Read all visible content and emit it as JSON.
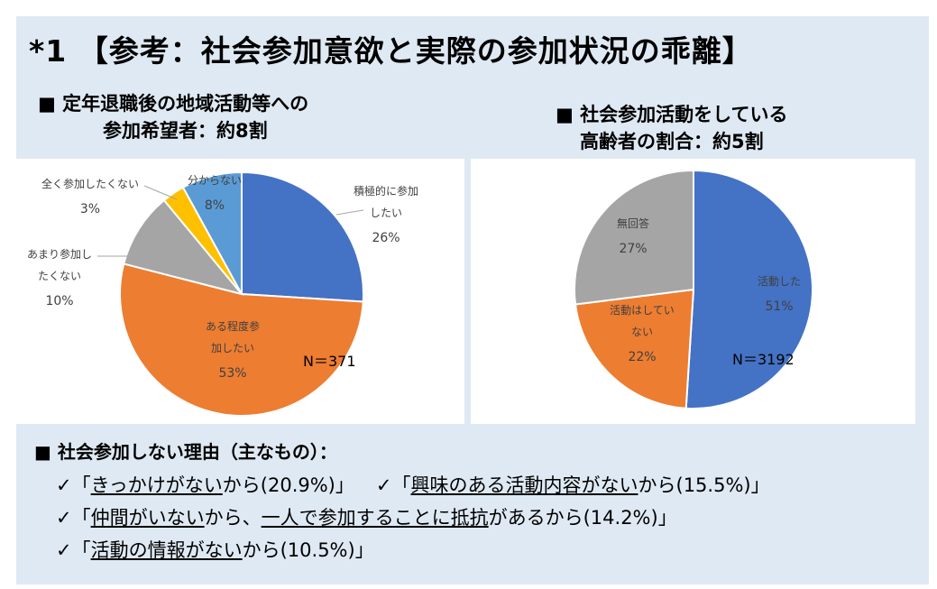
{
  "title": "*1 【参考：社会参加意欲と実際の参加状況の乖離】",
  "left_heading": {
    "line1": "■ 定年退職後の地域活動等への",
    "line2": "参加希望者：約8割"
  },
  "right_heading": {
    "line1": "■ 社会参加活動をしている",
    "line2": "高齢者の割合：約5割"
  },
  "chart_data": [
    {
      "type": "pie",
      "n_label": "N＝371",
      "slices": [
        {
          "label_lines": [
            "積極的に参加",
            "したい"
          ],
          "value": 26,
          "value_label": "26%",
          "color": "#4472c4"
        },
        {
          "label_lines": [
            "ある程度参",
            "加したい"
          ],
          "value": 53,
          "value_label": "53%",
          "color": "#ed7d31"
        },
        {
          "label_lines": [
            "あまり参加し",
            "たくない"
          ],
          "value": 10,
          "value_label": "10%",
          "color": "#a5a5a5"
        },
        {
          "label_lines": [
            "全く参加したくない"
          ],
          "value": 3,
          "value_label": "3%",
          "color": "#ffc000"
        },
        {
          "label_lines": [
            "分からない"
          ],
          "value": 8,
          "value_label": "8%",
          "color": "#5b9bd5"
        }
      ]
    },
    {
      "type": "pie",
      "n_label": "N＝3192",
      "slices": [
        {
          "label_lines": [
            "活動した"
          ],
          "value": 51,
          "value_label": "51%",
          "color": "#4472c4"
        },
        {
          "label_lines": [
            "活動はしてい",
            "ない"
          ],
          "value": 22,
          "value_label": "22%",
          "color": "#ed7d31"
        },
        {
          "label_lines": [
            "無回答"
          ],
          "value": 27,
          "value_label": "27%",
          "color": "#a5a5a5"
        }
      ]
    }
  ],
  "reasons": {
    "heading": "■ 社会参加しない理由（主なもの）：",
    "items": [
      {
        "check": "✓",
        "pre": "「",
        "u": "きっかけがない",
        "post": "から(20.9%)」"
      },
      {
        "check": "✓",
        "pre": "「",
        "u": "興味のある活動内容がない",
        "post": "から(15.5%)」"
      },
      {
        "check": "✓",
        "pre": "「",
        "u": "仲間がいない",
        "mid": "から、",
        "u2": "一人で参加することに抵抗",
        "post": "があるから(14.2%)」"
      },
      {
        "check": "✓",
        "pre": "「",
        "u": "活動の情報がない",
        "post": "から(10.5%)」"
      }
    ]
  }
}
